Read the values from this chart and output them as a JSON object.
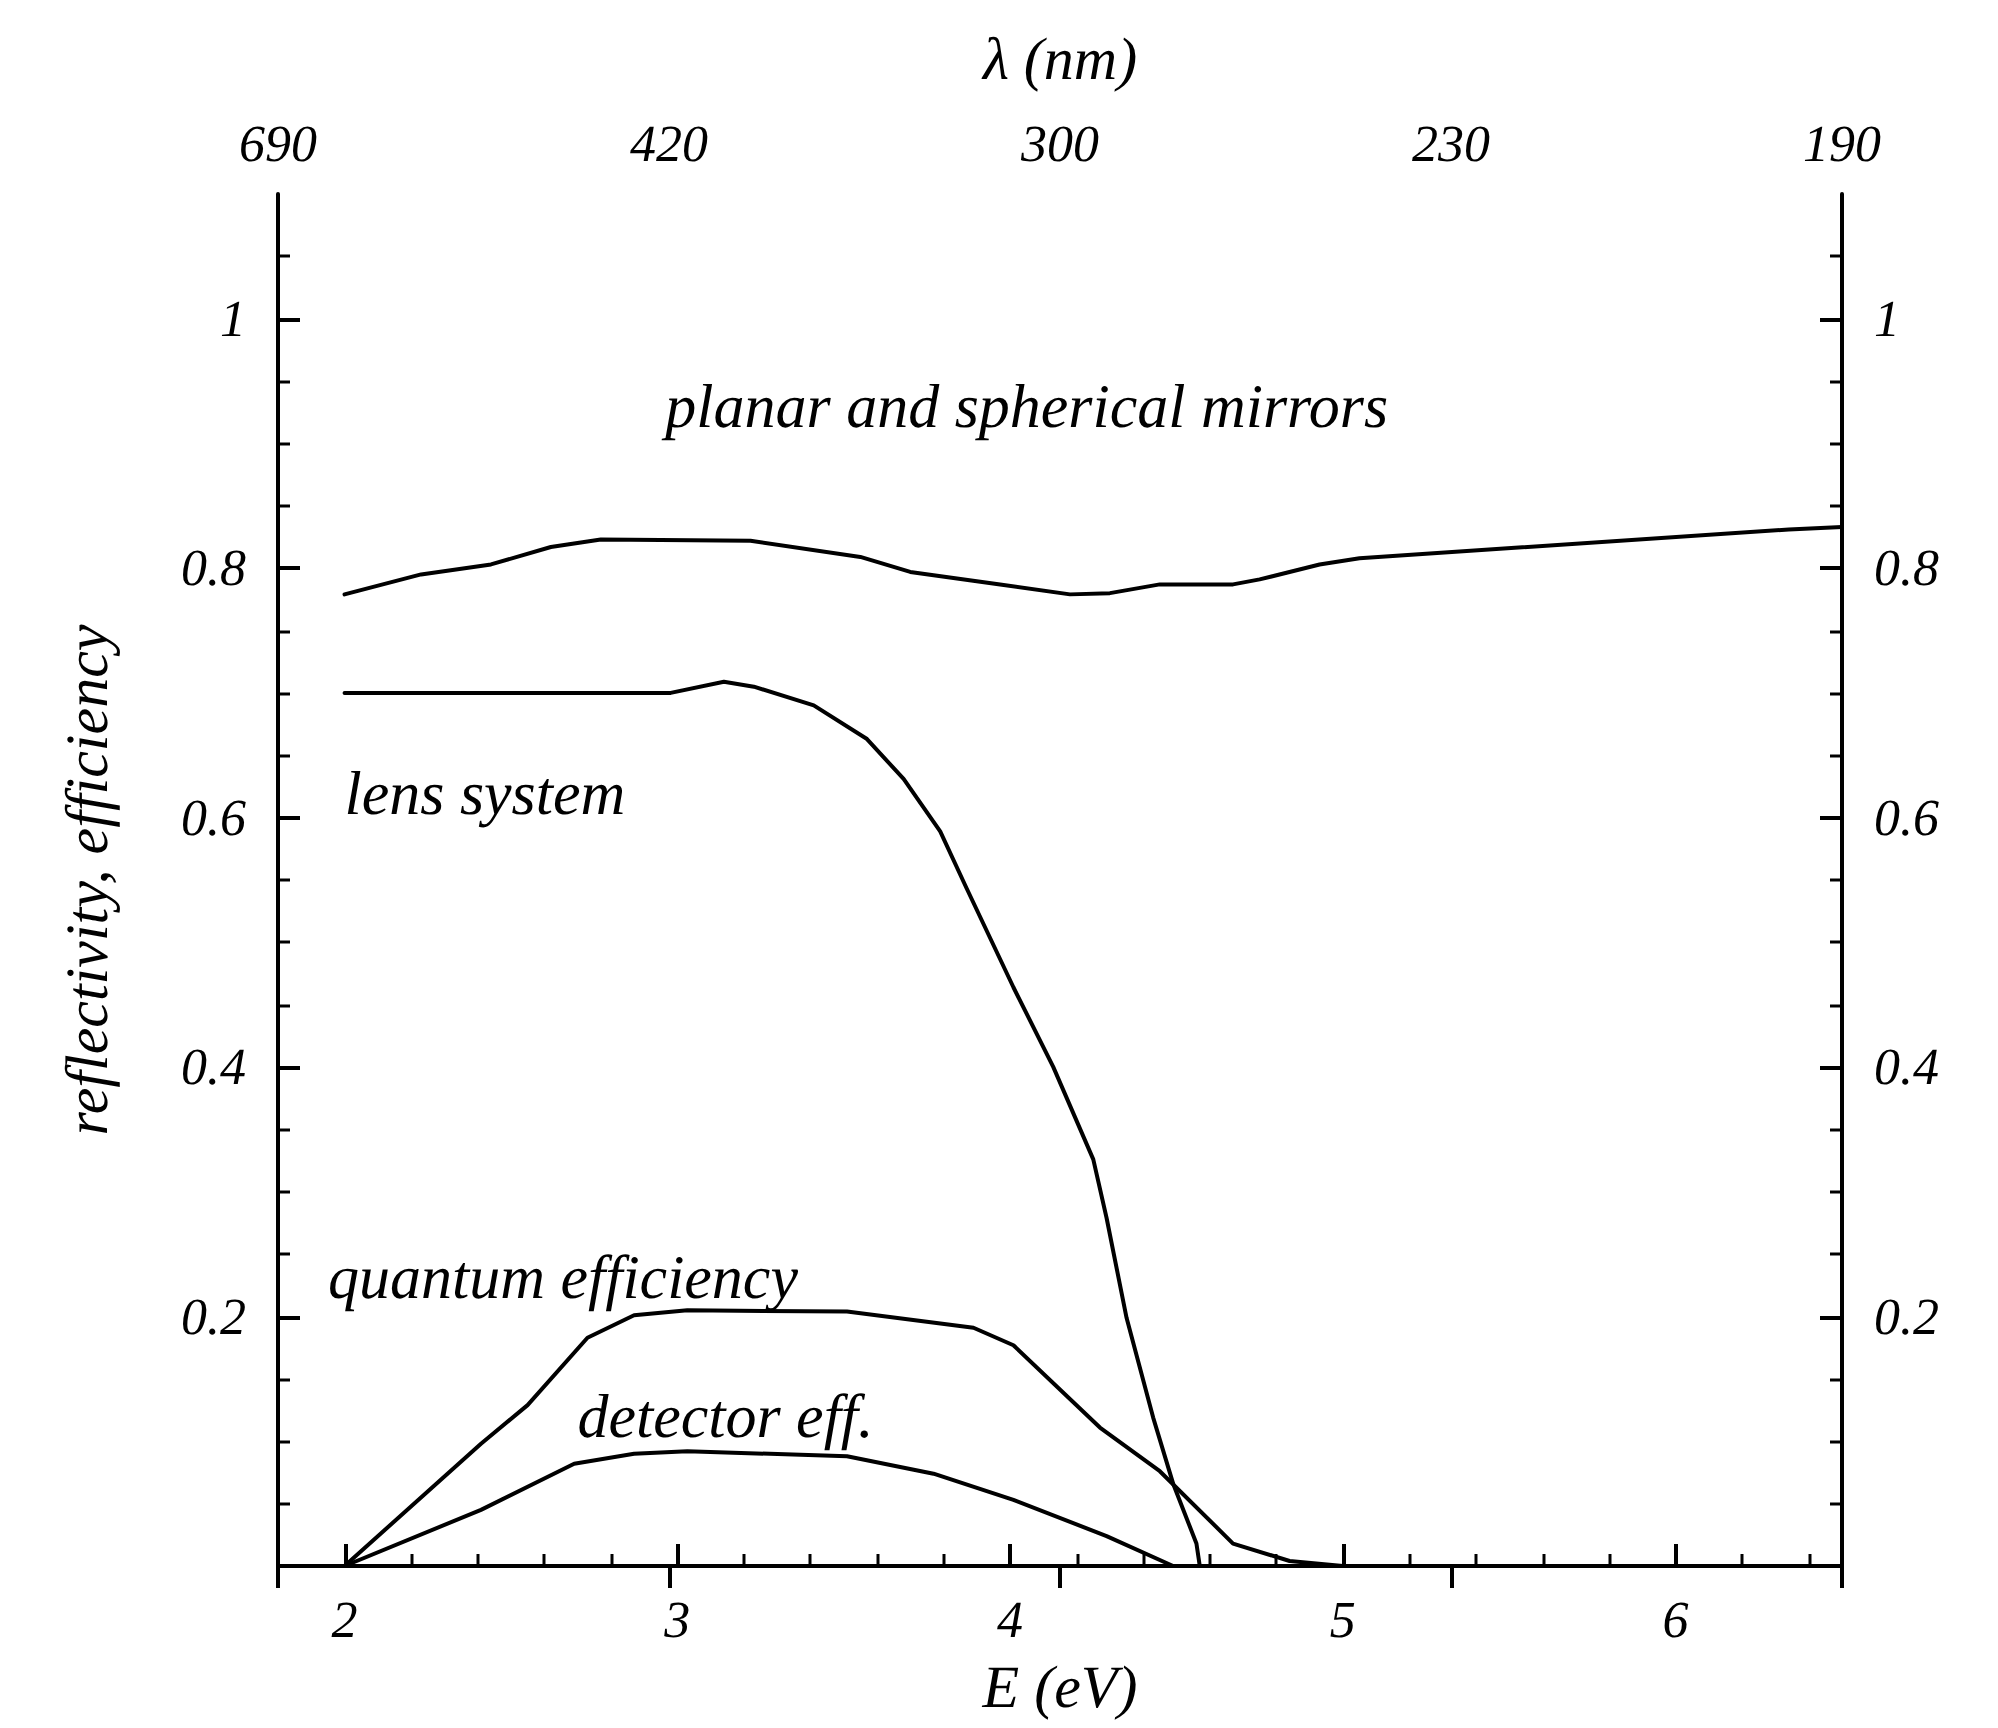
{
  "chart_data": {
    "type": "line",
    "xlabel": "E (eV)",
    "ylabel": "reflectivity, efficiency",
    "x2label": "λ (nm)",
    "xlim": [
      1.8,
      6.5
    ],
    "xticks": [
      2,
      3,
      4,
      5,
      6
    ],
    "annotations": [
      "690",
      "420",
      "300",
      "230",
      "190"
    ],
    "ylim": [
      0,
      1.1
    ],
    "yticks": [
      {
        "value": 0,
        "label": null
      },
      0.2,
      0.4,
      0.6,
      0.8,
      1
    ],
    "y2lim": [
      0,
      1.1
    ],
    "y2ticks": [
      {
        "value": 0,
        "label": null
      },
      0.2,
      0.4,
      0.6,
      0.8,
      1
    ],
    "grid": false,
    "legend": false,
    "marker": "none",
    "line_style": "solid",
    "series": [
      {
        "name": "planar and spherical mirrors",
        "color": "#000000",
        "x": [
          2.0,
          2.23,
          2.44,
          2.62,
          2.77,
          3.22,
          3.55,
          3.7,
          3.97,
          4.18,
          4.3,
          4.45,
          4.67,
          4.75,
          4.93,
          5.05,
          6.34,
          6.5
        ],
        "values": [
          0.779,
          0.795,
          0.803,
          0.817,
          0.823,
          0.822,
          0.809,
          0.797,
          0.787,
          0.779,
          0.78,
          0.787,
          0.787,
          0.791,
          0.803,
          0.808,
          0.831,
          0.833
        ]
      },
      {
        "name": "lens system",
        "color": "#000000",
        "x": [
          2.0,
          2.98,
          3.14,
          3.23,
          3.41,
          3.57,
          3.68,
          3.79,
          3.87,
          4.01,
          4.13,
          4.25,
          4.29,
          4.35,
          4.43,
          4.49,
          4.56,
          4.57
        ],
        "values": [
          0.7,
          0.7,
          0.709,
          0.705,
          0.69,
          0.663,
          0.631,
          0.589,
          0.543,
          0.464,
          0.4,
          0.326,
          0.279,
          0.199,
          0.119,
          0.066,
          0.018,
          0
        ]
      },
      {
        "name": "quantum efficiency",
        "color": "#000000",
        "x": [
          2.0,
          2.41,
          2.55,
          2.73,
          2.87,
          3.03,
          3.51,
          3.89,
          4.01,
          4.27,
          4.45,
          4.67,
          4.84,
          5.0
        ],
        "values": [
          0,
          0.098,
          0.129,
          0.183,
          0.201,
          0.205,
          0.204,
          0.191,
          0.177,
          0.111,
          0.076,
          0.018,
          0.004,
          0
        ]
      },
      {
        "name": "detector eff.",
        "color": "#000000",
        "x": [
          2.0,
          2.41,
          2.69,
          2.87,
          3.03,
          3.51,
          3.77,
          4.01,
          4.29,
          4.49
        ],
        "values": [
          0,
          0.045,
          0.082,
          0.09,
          0.092,
          0.088,
          0.074,
          0.053,
          0.024,
          0
        ]
      }
    ]
  }
}
